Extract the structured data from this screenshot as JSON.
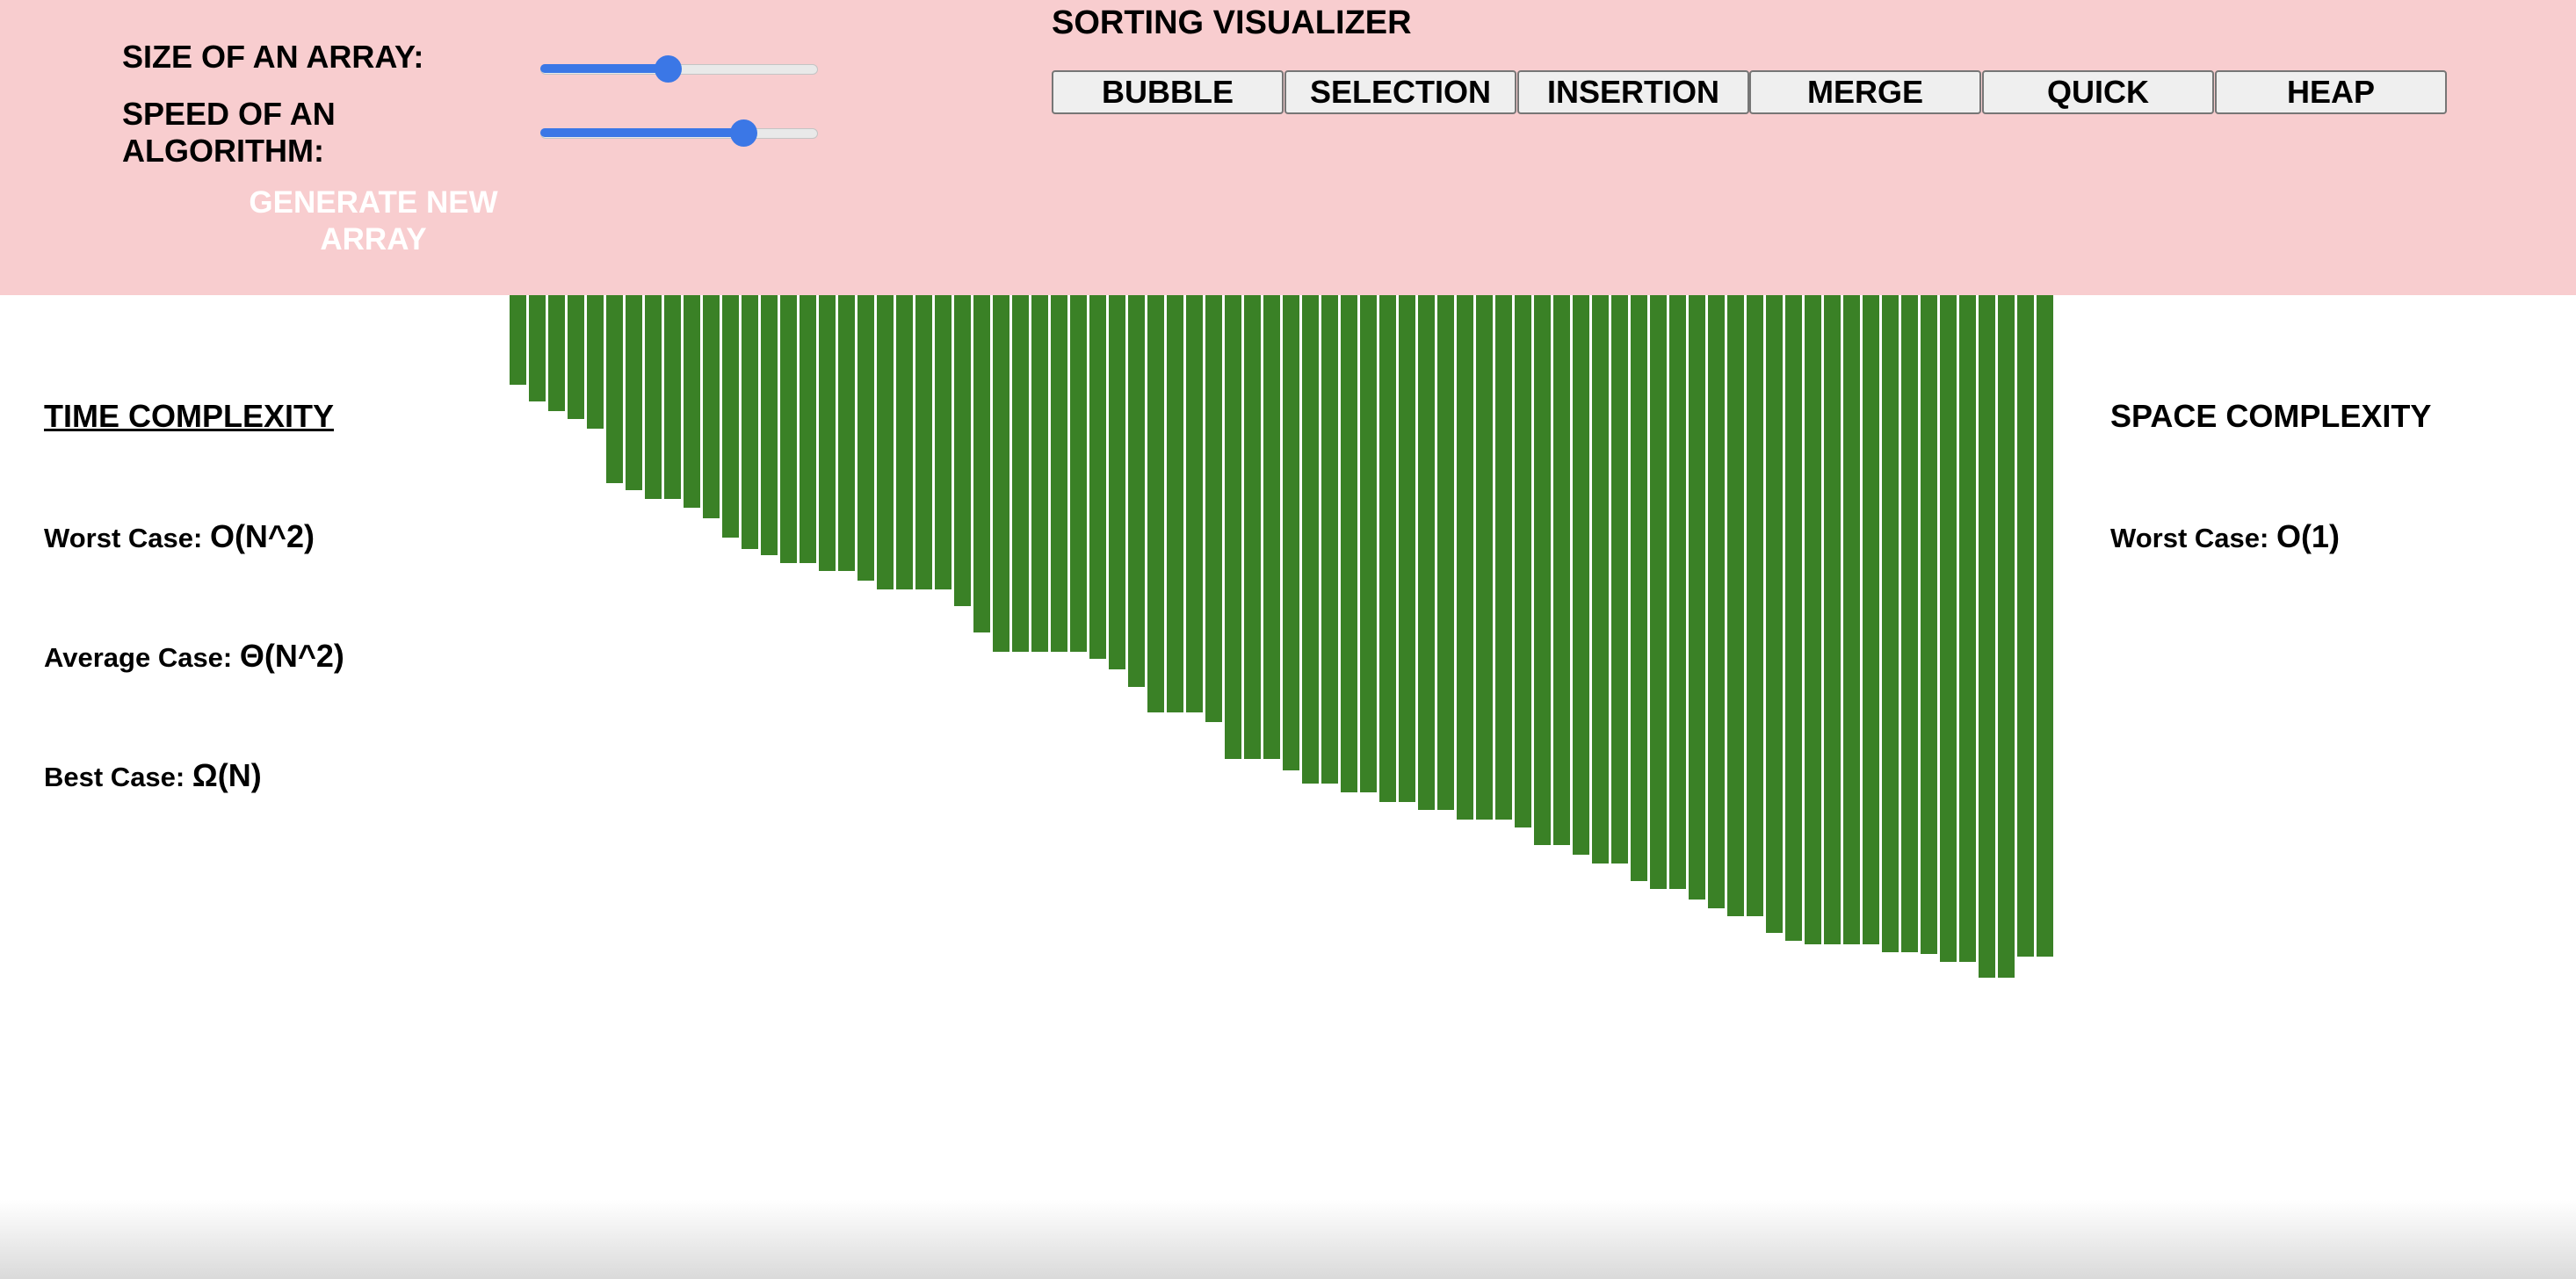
{
  "controls": {
    "size_label": "SIZE OF AN ARRAY:",
    "speed_label": "SPEED OF AN ALGORITHM:",
    "size_value_fraction": 0.46,
    "speed_value_fraction": 0.73,
    "generate_label": "GENERATE NEW ARRAY"
  },
  "title": "SORTING VISUALIZER",
  "algorithms": [
    "BUBBLE",
    "SELECTION",
    "INSERTION",
    "MERGE",
    "QUICK",
    "HEAP"
  ],
  "time_complexity": {
    "title": "TIME COMPLEXITY",
    "worst_label": "Worst Case:",
    "worst_value": "O(N^2)",
    "average_label": "Average Case:",
    "average_value": "Θ(N^2)",
    "best_label": "Best Case:",
    "best_value": "Ω(N)"
  },
  "space_complexity": {
    "title": "SPACE COMPLEXITY",
    "worst_label": "Worst Case:",
    "worst_value": "O(1)"
  },
  "colors": {
    "header_bg": "#f8cdcf",
    "bar": "#3a8126",
    "slider_accent": "#3b77e6",
    "generate_text": "#ffffff"
  },
  "chart_data": {
    "type": "bar",
    "values": [
      102,
      121,
      132,
      141,
      152,
      214,
      222,
      232,
      232,
      242,
      254,
      276,
      289,
      296,
      305,
      305,
      314,
      314,
      325,
      335,
      335,
      335,
      335,
      354,
      384,
      406,
      406,
      406,
      406,
      406,
      414,
      426,
      446,
      475,
      475,
      475,
      486,
      528,
      528,
      528,
      541,
      556,
      556,
      566,
      566,
      577,
      577,
      586,
      586,
      597,
      597,
      597,
      606,
      626,
      626,
      637,
      647,
      647,
      667,
      676,
      676,
      688,
      698,
      707,
      707,
      726,
      735,
      739,
      739,
      739,
      739,
      748,
      748,
      750,
      759,
      759,
      777,
      777,
      753,
      753
    ]
  }
}
